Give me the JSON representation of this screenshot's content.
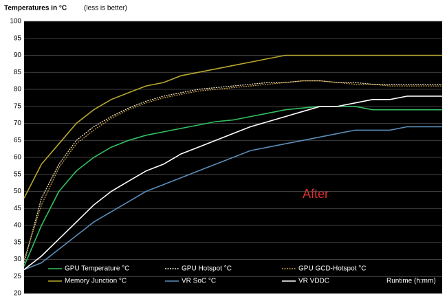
{
  "chart_data": {
    "type": "line",
    "title": "Temperatures in °C",
    "subtitle": "(less is better)",
    "x_label": "Runtime (h:mm)",
    "annotation": "After",
    "ylim": [
      20,
      100
    ],
    "yticks": [
      20,
      25,
      30,
      35,
      40,
      45,
      50,
      55,
      60,
      65,
      70,
      75,
      80,
      85,
      90,
      95,
      100
    ],
    "grid": true,
    "legend": "bottom",
    "series": [
      {
        "name": "GPU Temperature °C",
        "color": "#33c060",
        "values": [
          28,
          40,
          50,
          56,
          60,
          63,
          65,
          66.5,
          67.5,
          68.5,
          69.5,
          70.5,
          71,
          72,
          73,
          74,
          74.5,
          75,
          75,
          75,
          74,
          74,
          74,
          74,
          74
        ]
      },
      {
        "name": "GPU Hotspot °C",
        "color": "#f0e8c8",
        "dash": "dotted",
        "values": [
          29,
          48,
          58,
          65,
          69,
          72,
          74.5,
          76.5,
          78,
          79,
          80,
          80.5,
          81,
          81.5,
          82,
          82,
          82.5,
          82.5,
          82,
          82,
          81.5,
          81.5,
          81.5,
          81.5,
          81.5
        ]
      },
      {
        "name": "GPU GCD-Hotspot °C",
        "color": "#c89a40",
        "dash": "dotted",
        "values": [
          30,
          46,
          57,
          64,
          68,
          71.5,
          74,
          76,
          77.5,
          78.5,
          79.5,
          80,
          80.5,
          81,
          81.5,
          82,
          82.5,
          82.5,
          82,
          81.5,
          81.5,
          81,
          81,
          81,
          81
        ]
      },
      {
        "name": "Memory Junction °C",
        "color": "#b8a830",
        "values": [
          48,
          58,
          64,
          70,
          74,
          77,
          79,
          81,
          82,
          84,
          85,
          86,
          87,
          88,
          89,
          90,
          90,
          90,
          90,
          90,
          90,
          90,
          90,
          90,
          90
        ]
      },
      {
        "name": "VR SoC °C",
        "color": "#5b8db8",
        "values": [
          27,
          29,
          33,
          37,
          41,
          44,
          47,
          50,
          52,
          54,
          56,
          58,
          60,
          62,
          63,
          64,
          65,
          66,
          67,
          68,
          68,
          68,
          69,
          69,
          69
        ]
      },
      {
        "name": "VR VDDC",
        "color": "#ffffff",
        "values": [
          27,
          31,
          36,
          41,
          46,
          50,
          53,
          56,
          58,
          61,
          63,
          65,
          67,
          69,
          70.5,
          72,
          73.5,
          75,
          75,
          76,
          77,
          77,
          78,
          78,
          78
        ]
      }
    ]
  }
}
